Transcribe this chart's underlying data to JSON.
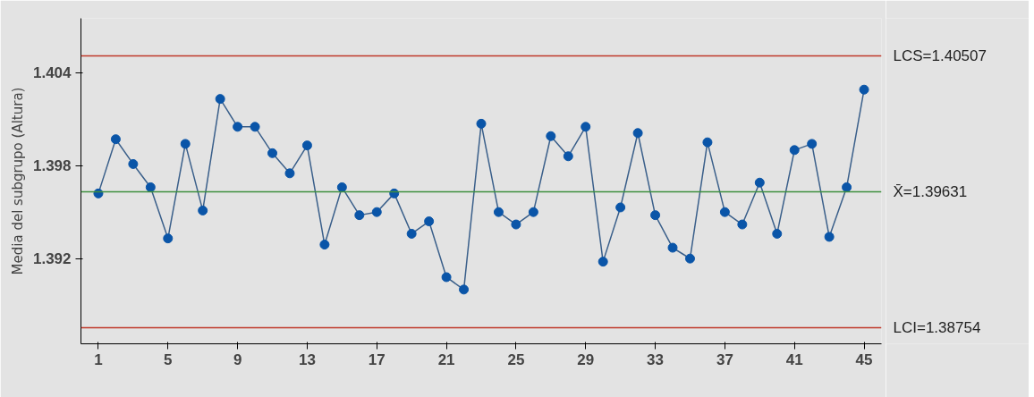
{
  "chart_data": {
    "type": "line",
    "ylabel": "Media del subgrupo (Altura)",
    "x": [
      1,
      2,
      3,
      4,
      5,
      6,
      7,
      8,
      9,
      10,
      11,
      12,
      13,
      14,
      15,
      16,
      17,
      18,
      19,
      20,
      21,
      22,
      23,
      24,
      25,
      26,
      27,
      28,
      29,
      30,
      31,
      32,
      33,
      34,
      35,
      36,
      37,
      38,
      39,
      40,
      41,
      42,
      43,
      44,
      45
    ],
    "series": [
      {
        "color": "#0a55a8",
        "values": [
          1.3962,
          1.3997,
          1.3981,
          1.3966,
          1.3933,
          1.3994,
          1.3951,
          1.4023,
          1.4005,
          1.4005,
          1.3988,
          1.3975,
          1.3993,
          1.3929,
          1.3966,
          1.3948,
          1.395,
          1.3962,
          1.3936,
          1.3944,
          1.3908,
          1.39,
          1.4007,
          1.395,
          1.3942,
          1.395,
          1.3999,
          1.3986,
          1.4005,
          1.3918,
          1.3953,
          1.4001,
          1.3948,
          1.3927,
          1.392,
          1.3995,
          1.395,
          1.3942,
          1.3969,
          1.3936,
          1.399,
          1.3994,
          1.3934,
          1.3966,
          1.4029
        ]
      }
    ],
    "marker": "circle",
    "line_style": "solid",
    "xlim": [
      0,
      46
    ],
    "xticks": [
      1,
      5,
      9,
      13,
      17,
      21,
      25,
      29,
      33,
      37,
      41,
      45
    ],
    "ylim": [
      1.3865,
      1.4075
    ],
    "yticks": [
      1.392,
      1.398,
      1.404
    ],
    "ref_lines": [
      {
        "axis": "y",
        "value": 1.40507,
        "label": "LCS=1.40507",
        "color": "#c0392b"
      },
      {
        "axis": "y",
        "value": 1.39631,
        "label": "X̄=1.39631",
        "color": "#3f8f3f"
      },
      {
        "axis": "y",
        "value": 1.38754,
        "label": "LCI=1.38754",
        "color": "#c0392b"
      }
    ]
  }
}
